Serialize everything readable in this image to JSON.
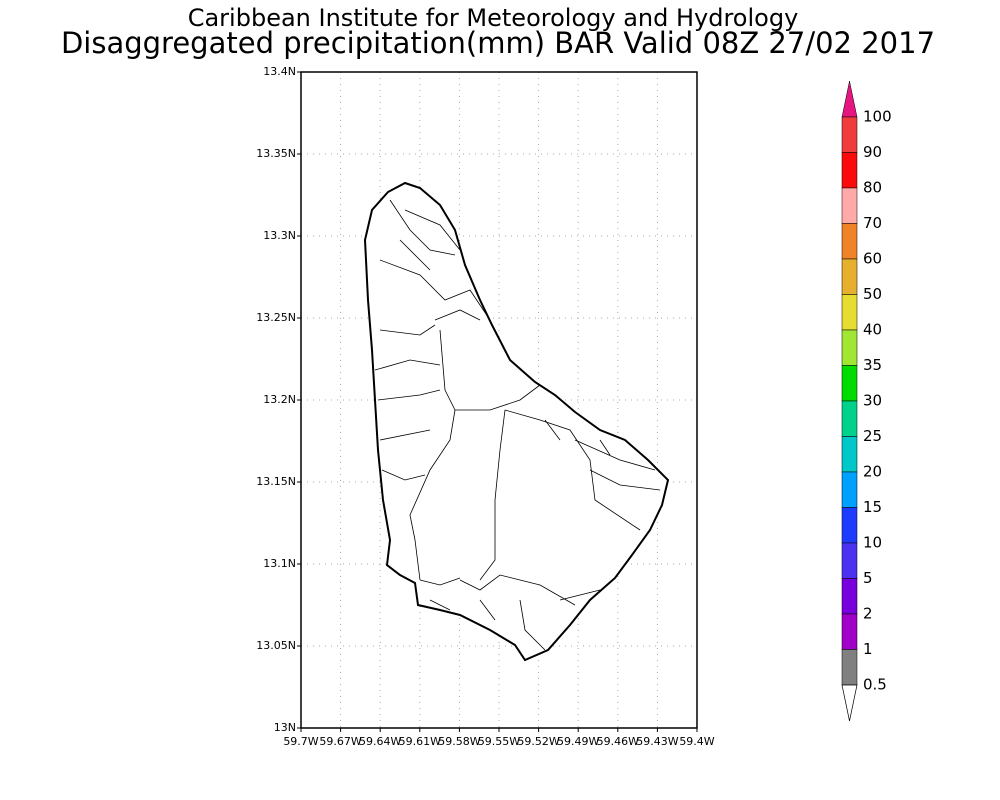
{
  "header": {
    "title": "Caribbean Institute for Meteorology and Hydrology",
    "subtitle": "Disaggregated precipitation(mm) BAR Valid 08Z 27/02 2017"
  },
  "map": {
    "xticks": [
      "59.7W",
      "59.67W",
      "59.64W",
      "59.61W",
      "59.58W",
      "59.55W",
      "59.52W",
      "59.49W",
      "59.46W",
      "59.43W",
      "59.4W"
    ],
    "yticks": [
      "13N",
      "13.05N",
      "13.1N",
      "13.15N",
      "13.2N",
      "13.25N",
      "13.3N",
      "13.35N",
      "13.4N"
    ]
  },
  "colorbar": {
    "levels": [
      100,
      90,
      80,
      70,
      60,
      50,
      40,
      35,
      30,
      25,
      20,
      15,
      10,
      5,
      2,
      1,
      0.5
    ],
    "colors": [
      "#f03c3c",
      "#fa0a0a",
      "#ffaaa8",
      "#f08228",
      "#e6af2d",
      "#e6dc32",
      "#a0e632",
      "#00dc00",
      "#00d28c",
      "#00c8c8",
      "#00a0ff",
      "#1e3cff",
      "#4b32f0",
      "#7800dc",
      "#a000c8",
      "#808080"
    ],
    "over_color": "#e6157f",
    "under_color": "#ffffff"
  }
}
